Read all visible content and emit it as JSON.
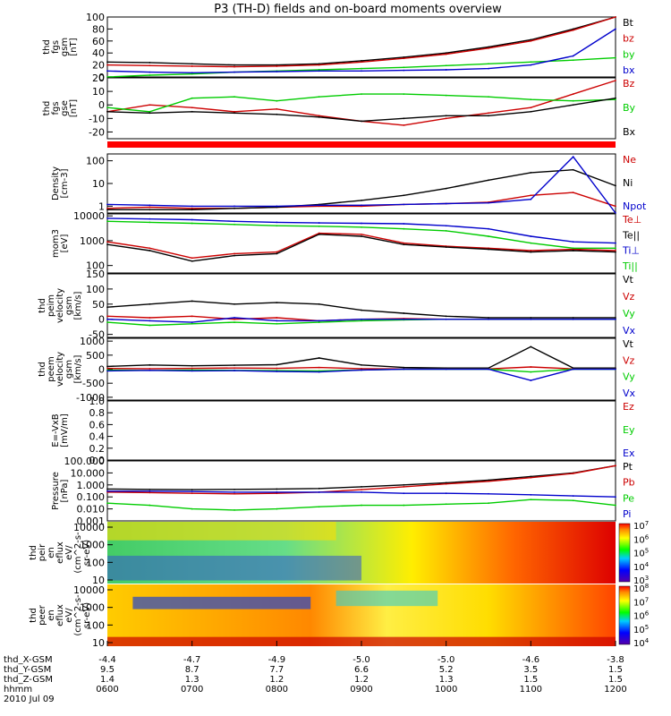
{
  "title": "P3 (TH-D) fields and on-board moments overview",
  "x_axis": {
    "ticks": [
      "0600",
      "0700",
      "0800",
      "0900",
      "1000",
      "1100",
      "1200"
    ],
    "row_labels": [
      "thd_X-GSM",
      "thd_Y-GSM",
      "thd_Z-GSM",
      "hhmm",
      "2010 Jul 09"
    ],
    "rows": [
      [
        "-4.4",
        "-4.7",
        "-4.9",
        "-5.0",
        "-5.0",
        "-4.6",
        "-3.8"
      ],
      [
        "9.5",
        "8.7",
        "7.7",
        "6.6",
        "5.2",
        "3.5",
        "1.5"
      ],
      [
        "1.4",
        "1.3",
        "1.2",
        "1.2",
        "1.3",
        "1.5",
        "1.5"
      ]
    ]
  },
  "chart_data": [
    {
      "id": "fgs_gsm",
      "type": "line",
      "ylabel_lines": [
        "thd",
        "fgs",
        "gsm",
        "[nT]"
      ],
      "ylim": [
        0,
        100
      ],
      "yticks": [
        "0",
        "20",
        "40",
        "60",
        "80",
        "100"
      ],
      "x": [
        6,
        6.5,
        7,
        7.5,
        8,
        8.5,
        9,
        9.5,
        10,
        10.5,
        11,
        11.5,
        12
      ],
      "series": [
        {
          "name": "Bt",
          "color": "#000000",
          "values": [
            25,
            24,
            22,
            20,
            20,
            22,
            27,
            33,
            40,
            50,
            62,
            80,
            100
          ]
        },
        {
          "name": "bz",
          "color": "#cc0000",
          "values": [
            20,
            19,
            18,
            17,
            18,
            20,
            25,
            31,
            38,
            48,
            60,
            78,
            100
          ]
        },
        {
          "name": "by",
          "color": "#00cc00",
          "values": [
            0,
            3,
            5,
            8,
            10,
            12,
            14,
            16,
            19,
            22,
            25,
            28,
            32
          ]
        },
        {
          "name": "bx",
          "color": "#0000cc",
          "values": [
            10,
            8,
            7,
            8,
            9,
            10,
            10,
            11,
            12,
            14,
            20,
            35,
            80
          ]
        }
      ]
    },
    {
      "id": "fgs_gse",
      "type": "line",
      "ylabel_lines": [
        "thd",
        "fgs",
        "gse",
        "[nT]"
      ],
      "ylim": [
        -25,
        20
      ],
      "yticks": [
        "-20",
        "-10",
        "0",
        "10",
        "20"
      ],
      "x": [
        6,
        6.5,
        7,
        7.5,
        8,
        8.5,
        9,
        9.5,
        10,
        10.5,
        11,
        11.5,
        12
      ],
      "series": [
        {
          "name": "Bz",
          "color": "#cc0000",
          "values": [
            -5,
            0,
            -2,
            -5,
            -3,
            -8,
            -12,
            -15,
            -10,
            -6,
            -2,
            8,
            18
          ]
        },
        {
          "name": "By",
          "color": "#00cc00",
          "values": [
            -2,
            -5,
            5,
            6,
            3,
            6,
            8,
            8,
            7,
            6,
            4,
            3,
            4
          ]
        },
        {
          "name": "Bx",
          "color": "#000000",
          "values": [
            -5,
            -6,
            -5,
            -6,
            -7,
            -9,
            -12,
            -10,
            -8,
            -8,
            -5,
            0,
            5
          ]
        }
      ]
    },
    {
      "id": "density",
      "type": "line",
      "log": true,
      "ylabel_lines": [
        "Density",
        "[cm-3]"
      ],
      "ylim": [
        0.5,
        200
      ],
      "yticks": [
        "1",
        "10",
        "100"
      ],
      "ytick_values": [
        1,
        10,
        100
      ],
      "x": [
        6,
        6.5,
        7,
        7.5,
        8,
        8.5,
        9,
        9.5,
        10,
        10.5,
        11,
        11.5,
        12
      ],
      "series": [
        {
          "name": "Ne",
          "color": "#cc0000",
          "values": [
            0.8,
            0.9,
            0.8,
            0.8,
            0.9,
            1,
            1,
            1.2,
            1.3,
            1.5,
            3,
            4,
            1
          ]
        },
        {
          "name": "Ni",
          "color": "#000000",
          "values": [
            0.7,
            0.7,
            0.7,
            0.8,
            0.9,
            1.2,
            1.8,
            3,
            6,
            14,
            30,
            40,
            8
          ]
        },
        {
          "name": "Npot",
          "color": "#0000cc",
          "values": [
            1.2,
            1.1,
            1,
            1,
            1,
            1.1,
            1.1,
            1.2,
            1.3,
            1.4,
            2,
            150,
            0
          ]
        }
      ]
    },
    {
      "id": "temperature",
      "type": "line",
      "log": true,
      "ylabel_lines": [
        "mom3",
        "[eV]"
      ],
      "ylim": [
        50,
        12000
      ],
      "yticks": [
        "100",
        "1000",
        "10000"
      ],
      "ytick_values": [
        100,
        1000,
        10000
      ],
      "x": [
        6,
        6.5,
        7,
        7.5,
        8,
        8.5,
        9,
        9.5,
        10,
        10.5,
        11,
        11.5,
        12
      ],
      "series": [
        {
          "name": "Te⊥",
          "color": "#cc0000",
          "values": [
            900,
            500,
            200,
            300,
            350,
            2000,
            1800,
            800,
            600,
            500,
            400,
            450,
            400
          ]
        },
        {
          "name": "Te||",
          "color": "#000000",
          "values": [
            700,
            400,
            150,
            250,
            300,
            1800,
            1500,
            700,
            550,
            450,
            350,
            400,
            350
          ]
        },
        {
          "name": "Ti⊥",
          "color": "#0000cc",
          "values": [
            8000,
            7500,
            7000,
            6000,
            5500,
            5200,
            5000,
            4800,
            4000,
            3000,
            1500,
            900,
            800
          ]
        },
        {
          "name": "Ti||",
          "color": "#00cc00",
          "values": [
            6000,
            5500,
            5000,
            4500,
            4000,
            3800,
            3500,
            3000,
            2500,
            1500,
            800,
            500,
            500
          ]
        }
      ]
    },
    {
      "id": "peim_velocity",
      "type": "line",
      "ylabel_lines": [
        "thd",
        "peim",
        "velocity",
        "gsm",
        "[km/s]"
      ],
      "ylim": [
        -60,
        150
      ],
      "yticks": [
        "-50",
        "0",
        "50",
        "100",
        "150"
      ],
      "x": [
        6,
        6.5,
        7,
        7.5,
        8,
        8.5,
        9,
        9.5,
        10,
        10.5,
        11,
        11.5,
        12
      ],
      "series": [
        {
          "name": "Vt",
          "color": "#000000",
          "values": [
            40,
            50,
            60,
            50,
            55,
            50,
            30,
            20,
            10,
            5,
            5,
            5,
            5
          ]
        },
        {
          "name": "Vz",
          "color": "#cc0000",
          "values": [
            10,
            5,
            10,
            0,
            5,
            -5,
            0,
            2,
            0,
            0,
            0,
            0,
            0
          ]
        },
        {
          "name": "Vy",
          "color": "#00cc00",
          "values": [
            -10,
            -20,
            -15,
            -10,
            -15,
            -10,
            -5,
            -2,
            0,
            0,
            0,
            0,
            0
          ]
        },
        {
          "name": "Vx",
          "color": "#0000cc",
          "values": [
            0,
            -5,
            -10,
            5,
            -5,
            -5,
            0,
            0,
            0,
            0,
            0,
            0,
            0
          ]
        }
      ]
    },
    {
      "id": "peem_velocity",
      "type": "line",
      "ylabel_lines": [
        "thd",
        "peem",
        "velocity",
        "gsm",
        "[km/s]"
      ],
      "ylim": [
        -1100,
        1100
      ],
      "yticks": [
        "-1000",
        "-500",
        "0",
        "500",
        "1000"
      ],
      "x": [
        6,
        6.5,
        7,
        7.5,
        8,
        8.5,
        9,
        9.5,
        10,
        10.5,
        11,
        11.5,
        12
      ],
      "series": [
        {
          "name": "Vt",
          "color": "#000000",
          "values": [
            100,
            150,
            120,
            140,
            160,
            400,
            150,
            60,
            40,
            40,
            800,
            40,
            40
          ]
        },
        {
          "name": "Vz",
          "color": "#cc0000",
          "values": [
            30,
            20,
            30,
            40,
            30,
            60,
            20,
            10,
            10,
            10,
            80,
            10,
            10
          ]
        },
        {
          "name": "Vy",
          "color": "#00cc00",
          "values": [
            -30,
            -40,
            -30,
            -40,
            -50,
            -60,
            -30,
            0,
            0,
            0,
            -100,
            0,
            0
          ]
        },
        {
          "name": "Vx",
          "color": "#0000cc",
          "values": [
            -60,
            -40,
            -60,
            -50,
            -80,
            -100,
            -30,
            0,
            0,
            0,
            -400,
            0,
            0
          ]
        }
      ]
    },
    {
      "id": "efield",
      "type": "line",
      "ylabel_lines": [
        "E=-VxB",
        "[mV/m]"
      ],
      "ylim": [
        0,
        1
      ],
      "yticks": [
        "0.0",
        "0.2",
        "0.4",
        "0.6",
        "0.8",
        "1.0"
      ],
      "x": [],
      "series": [
        {
          "name": "Ez",
          "color": "#cc0000",
          "values": []
        },
        {
          "name": "Ey",
          "color": "#00cc00",
          "values": []
        },
        {
          "name": "Ex",
          "color": "#0000cc",
          "values": []
        }
      ]
    },
    {
      "id": "pressure",
      "type": "line",
      "log": true,
      "ylabel_lines": [
        "Pressure",
        "[nPa]"
      ],
      "ylim": [
        0.001,
        100
      ],
      "yticks": [
        "0.001",
        "0.010",
        "0.100",
        "1.000",
        "10.000",
        "100.000"
      ],
      "ytick_values": [
        0.001,
        0.01,
        0.1,
        1,
        10,
        100
      ],
      "x": [
        6,
        6.5,
        7,
        7.5,
        8,
        8.5,
        9,
        9.5,
        10,
        10.5,
        11,
        11.5,
        12
      ],
      "series": [
        {
          "name": "Pt",
          "color": "#000000",
          "values": [
            0.45,
            0.42,
            0.4,
            0.42,
            0.45,
            0.5,
            0.7,
            1.0,
            1.5,
            2.5,
            5,
            10,
            40
          ]
        },
        {
          "name": "Pb",
          "color": "#cc0000",
          "values": [
            0.25,
            0.23,
            0.2,
            0.18,
            0.2,
            0.25,
            0.4,
            0.7,
            1.2,
            2,
            4,
            9,
            40
          ]
        },
        {
          "name": "Pe",
          "color": "#00cc00",
          "values": [
            0.03,
            0.02,
            0.01,
            0.008,
            0.01,
            0.015,
            0.02,
            0.02,
            0.025,
            0.03,
            0.06,
            0.05,
            0.02
          ]
        },
        {
          "name": "Pi",
          "color": "#0000cc",
          "values": [
            0.3,
            0.3,
            0.28,
            0.25,
            0.25,
            0.25,
            0.25,
            0.2,
            0.2,
            0.18,
            0.15,
            0.12,
            0.1
          ]
        }
      ]
    },
    {
      "id": "peir_spec",
      "type": "heatmap",
      "ylabel_lines": [
        "thd",
        "peir",
        "en",
        "eflux",
        "eV/",
        "(cm^2-s-",
        "sr-eV)"
      ],
      "yticks": [
        "10",
        "100",
        "1000",
        "10000"
      ],
      "colorbar_ticks": [
        "10^3",
        "10^4",
        "10^5",
        "10^6",
        "10^7"
      ]
    },
    {
      "id": "peer_spec",
      "type": "heatmap",
      "ylabel_lines": [
        "thd",
        "peer",
        "en",
        "eflux",
        "eV/",
        "(cm^2-s-",
        "sr-eV)"
      ],
      "yticks": [
        "10",
        "100",
        "1000",
        "10000"
      ],
      "colorbar_ticks": [
        "10^4",
        "10^5",
        "10^6",
        "10^7",
        "10^8"
      ]
    }
  ]
}
